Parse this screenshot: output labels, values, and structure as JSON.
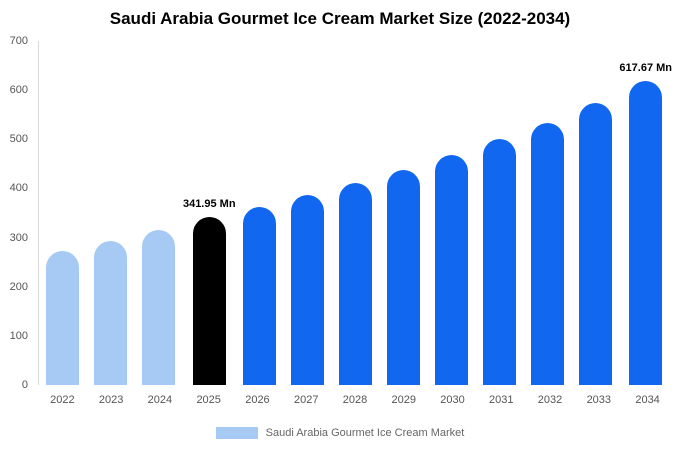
{
  "title": "Saudi Arabia Gourmet Ice Cream Market Size (2022-2034)",
  "legend": {
    "label": "Saudi Arabia Gourmet Ice Cream Market",
    "swatch_color": "#a6caf4"
  },
  "colors": {
    "historical": "#a6caf4",
    "highlight": "#000000",
    "forecast": "#1267f1",
    "axis_text": "#555555"
  },
  "chart_data": {
    "type": "bar",
    "title": "Saudi Arabia Gourmet Ice Cream Market Size (2022-2034)",
    "categories": [
      "2022",
      "2023",
      "2024",
      "2025",
      "2026",
      "2027",
      "2028",
      "2029",
      "2030",
      "2031",
      "2032",
      "2033",
      "2034"
    ],
    "values": [
      272,
      294,
      315,
      341.95,
      362,
      386,
      411,
      438,
      468,
      500,
      534,
      574,
      617.67
    ],
    "bar_colors": [
      "#a6caf4",
      "#a6caf4",
      "#a6caf4",
      "#000000",
      "#1267f1",
      "#1267f1",
      "#1267f1",
      "#1267f1",
      "#1267f1",
      "#1267f1",
      "#1267f1",
      "#1267f1",
      "#1267f1"
    ],
    "annotations": [
      {
        "index": 3,
        "label": "341.95 Mn"
      },
      {
        "index": 12,
        "label": "617.67 Mn"
      }
    ],
    "xlabel": "",
    "ylabel": "",
    "ylim": [
      0,
      700
    ],
    "yticks": [
      0,
      100,
      200,
      300,
      400,
      500,
      600,
      700
    ],
    "grid": false,
    "legend_position": "bottom",
    "unit": "Mn"
  }
}
